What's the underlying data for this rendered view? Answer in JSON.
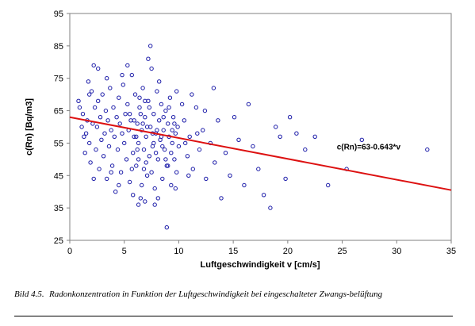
{
  "chart_data": {
    "type": "scatter",
    "xlabel": "Luftgeschwindigkeit v [cm/s]",
    "ylabel": "c(Rn) [Bq/m3]",
    "xlim": [
      0,
      35
    ],
    "ylim": [
      25,
      95
    ],
    "xticks": [
      0,
      5,
      10,
      15,
      20,
      25,
      30,
      35
    ],
    "yticks": [
      25,
      35,
      45,
      55,
      65,
      75,
      85,
      95
    ],
    "grid": false,
    "marker": "open-circle",
    "marker_color": "#1a1aa8",
    "line_color": "#dd1111",
    "fit": {
      "intercept": 63,
      "slope": -0.643,
      "x": [
        0,
        35
      ]
    },
    "annotation": {
      "text": "c(Rn)=63-0.643*v",
      "x": 24.5,
      "y": 53
    },
    "points": [
      [
        0.8,
        68
      ],
      [
        1.2,
        64
      ],
      [
        1.3,
        57
      ],
      [
        1.4,
        52
      ],
      [
        1.5,
        58
      ],
      [
        1.6,
        62
      ],
      [
        1.7,
        74
      ],
      [
        1.8,
        55
      ],
      [
        1.9,
        49
      ],
      [
        2.0,
        71
      ],
      [
        2.1,
        61
      ],
      [
        2.2,
        79
      ],
      [
        2.3,
        66
      ],
      [
        2.4,
        53
      ],
      [
        2.5,
        60
      ],
      [
        2.6,
        78
      ],
      [
        2.7,
        47
      ],
      [
        2.8,
        63
      ],
      [
        2.9,
        56
      ],
      [
        3.0,
        70
      ],
      [
        3.1,
        51
      ],
      [
        3.2,
        58
      ],
      [
        3.3,
        65
      ],
      [
        3.4,
        44
      ],
      [
        3.5,
        62
      ],
      [
        3.6,
        54
      ],
      [
        3.7,
        72
      ],
      [
        3.8,
        59
      ],
      [
        3.9,
        48
      ],
      [
        4.0,
        66
      ],
      [
        4.1,
        57
      ],
      [
        4.2,
        40
      ],
      [
        4.3,
        63
      ],
      [
        4.4,
        53
      ],
      [
        4.5,
        69
      ],
      [
        4.6,
        61
      ],
      [
        4.7,
        46
      ],
      [
        4.8,
        58
      ],
      [
        4.9,
        73
      ],
      [
        5.0,
        55
      ],
      [
        5.1,
        64
      ],
      [
        5.2,
        50
      ],
      [
        5.3,
        67
      ],
      [
        5.4,
        59
      ],
      [
        5.5,
        43
      ],
      [
        5.6,
        62
      ],
      [
        5.7,
        76
      ],
      [
        5.8,
        52
      ],
      [
        5.9,
        57
      ],
      [
        6.0,
        70
      ],
      [
        6.1,
        48
      ],
      [
        6.2,
        61
      ],
      [
        6.3,
        55
      ],
      [
        6.4,
        66
      ],
      [
        6.5,
        38
      ],
      [
        6.6,
        59
      ],
      [
        6.7,
        72
      ],
      [
        6.8,
        53
      ],
      [
        6.9,
        63
      ],
      [
        7.0,
        57
      ],
      [
        7.1,
        45
      ],
      [
        7.2,
        68
      ],
      [
        7.3,
        51
      ],
      [
        7.4,
        60
      ],
      [
        7.5,
        78
      ],
      [
        7.6,
        54
      ],
      [
        7.7,
        64
      ],
      [
        7.8,
        41
      ],
      [
        7.9,
        58
      ],
      [
        8.0,
        71
      ],
      [
        8.1,
        50
      ],
      [
        8.2,
        62
      ],
      [
        8.3,
        56
      ],
      [
        8.4,
        67
      ],
      [
        8.5,
        44
      ],
      [
        8.6,
        59
      ],
      [
        8.7,
        53
      ],
      [
        8.8,
        65
      ],
      [
        8.9,
        48
      ],
      [
        9.0,
        61
      ],
      [
        9.1,
        57
      ],
      [
        9.2,
        69
      ],
      [
        9.3,
        42
      ],
      [
        9.4,
        55
      ],
      [
        9.5,
        63
      ],
      [
        9.6,
        50
      ],
      [
        9.7,
        58
      ],
      [
        9.8,
        46
      ],
      [
        9.9,
        60
      ],
      [
        10.0,
        54
      ],
      [
        7.4,
        85
      ],
      [
        7.2,
        81
      ],
      [
        6.9,
        37
      ],
      [
        8.9,
        29
      ],
      [
        6.3,
        36
      ],
      [
        5.8,
        39
      ],
      [
        7.8,
        36
      ],
      [
        6.6,
        42
      ],
      [
        8.1,
        38
      ],
      [
        9.7,
        41
      ],
      [
        10.5,
        62
      ],
      [
        10.8,
        51
      ],
      [
        11.0,
        57
      ],
      [
        11.3,
        47
      ],
      [
        11.6,
        66
      ],
      [
        11.9,
        53
      ],
      [
        12.2,
        59
      ],
      [
        12.5,
        44
      ],
      [
        12.9,
        55
      ],
      [
        13.3,
        49
      ],
      [
        13.6,
        62
      ],
      [
        13.9,
        38
      ],
      [
        14.3,
        52
      ],
      [
        14.7,
        45
      ],
      [
        15.1,
        63
      ],
      [
        15.5,
        56
      ],
      [
        16.0,
        42
      ],
      [
        16.4,
        67
      ],
      [
        16.8,
        54
      ],
      [
        17.3,
        47
      ],
      [
        17.8,
        39
      ],
      [
        18.4,
        35
      ],
      [
        18.9,
        60
      ],
      [
        19.3,
        57
      ],
      [
        19.8,
        44
      ],
      [
        20.2,
        63
      ],
      [
        20.8,
        58
      ],
      [
        21.6,
        53
      ],
      [
        22.5,
        57
      ],
      [
        23.7,
        42
      ],
      [
        25.4,
        47
      ],
      [
        26.8,
        56
      ],
      [
        32.8,
        53
      ],
      [
        13.2,
        72
      ],
      [
        12.4,
        65
      ],
      [
        11.7,
        58
      ],
      [
        11.2,
        70
      ],
      [
        10.9,
        45
      ],
      [
        10.6,
        55
      ],
      [
        10.3,
        67
      ],
      [
        2.2,
        44
      ],
      [
        3.4,
        75
      ],
      [
        4.8,
        76
      ],
      [
        5.3,
        79
      ],
      [
        4.5,
        42
      ],
      [
        3.8,
        46
      ],
      [
        2.6,
        68
      ],
      [
        1.8,
        70
      ],
      [
        1.1,
        60
      ],
      [
        0.9,
        66
      ],
      [
        5.5,
        64
      ],
      [
        5.7,
        47
      ],
      [
        6.2,
        53
      ],
      [
        6.4,
        69
      ],
      [
        6.7,
        61
      ],
      [
        7.0,
        49
      ],
      [
        7.3,
        66
      ],
      [
        7.6,
        58
      ],
      [
        7.9,
        52
      ],
      [
        8.2,
        74
      ],
      [
        8.4,
        57
      ],
      [
        8.8,
        50
      ],
      [
        9.1,
        66
      ],
      [
        9.4,
        59
      ],
      [
        9.8,
        71
      ],
      [
        6.1,
        57
      ],
      [
        6.5,
        64
      ],
      [
        6.8,
        47
      ],
      [
        7.1,
        60
      ],
      [
        7.7,
        55
      ],
      [
        8.6,
        63
      ],
      [
        9.3,
        52
      ],
      [
        5.9,
        62
      ],
      [
        6.3,
        50
      ],
      [
        6.9,
        68
      ],
      [
        7.5,
        46
      ],
      [
        8.0,
        59
      ],
      [
        8.5,
        54
      ],
      [
        9.0,
        48
      ],
      [
        9.6,
        61
      ]
    ]
  },
  "caption": {
    "number": "Bild 4.5.",
    "text": "Radonkonzentration in Funktion der Luftgeschwindigkeit bei eingeschalteter Zwangs-belüftung"
  }
}
